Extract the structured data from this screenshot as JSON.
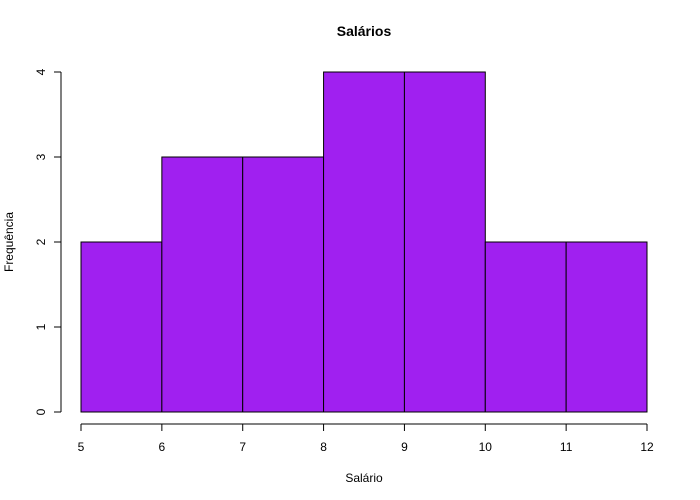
{
  "chart_data": {
    "type": "bar",
    "subtype": "histogram",
    "title": "Salários",
    "xlabel": "Salário",
    "ylabel": "Frequência",
    "bins": [
      {
        "start": 5,
        "end": 6,
        "count": 2
      },
      {
        "start": 6,
        "end": 7,
        "count": 3
      },
      {
        "start": 7,
        "end": 8,
        "count": 3
      },
      {
        "start": 8,
        "end": 9,
        "count": 4
      },
      {
        "start": 9,
        "end": 10,
        "count": 4
      },
      {
        "start": 10,
        "end": 11,
        "count": 2
      },
      {
        "start": 11,
        "end": 12,
        "count": 2
      }
    ],
    "xlim": [
      5,
      12
    ],
    "ylim": [
      0,
      4
    ],
    "x_ticks": [
      5,
      6,
      7,
      8,
      9,
      10,
      11,
      12
    ],
    "y_ticks": [
      0,
      1,
      2,
      3,
      4
    ],
    "bar_color": "#A020F0",
    "grid": false,
    "legend": "none"
  }
}
